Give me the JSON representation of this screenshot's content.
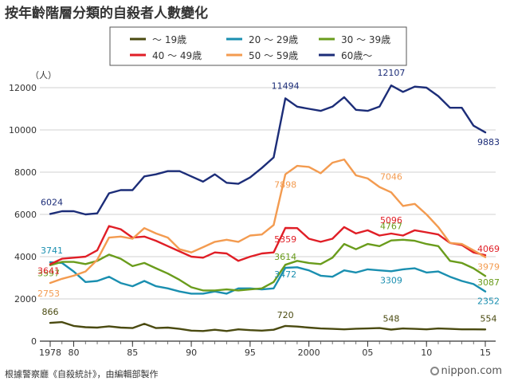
{
  "title": "按年齡階層分類的自殺者人數變化",
  "source": "根據警察廳《自殺統計》，由編輯部製作",
  "brand": "nippon.com",
  "chart_data": {
    "type": "line",
    "ylabel": "（人）",
    "ylim": [
      0,
      12000
    ],
    "xlim": [
      1978,
      2015
    ],
    "yticks": [
      0,
      2000,
      4000,
      6000,
      8000,
      10000,
      12000
    ],
    "xticks": [
      {
        "value": 1978,
        "label": "1978"
      },
      {
        "value": 1980,
        "label": "80"
      },
      {
        "value": 1985,
        "label": "85"
      },
      {
        "value": 1990,
        "label": "90"
      },
      {
        "value": 1995,
        "label": "95"
      },
      {
        "value": 2000,
        "label": "2000"
      },
      {
        "value": 2005,
        "label": "05"
      },
      {
        "value": 2010,
        "label": "10"
      },
      {
        "value": 2015,
        "label": "15"
      }
    ],
    "grid": true,
    "legend_position": "top",
    "x": [
      1978,
      1979,
      1980,
      1981,
      1982,
      1983,
      1984,
      1985,
      1986,
      1987,
      1988,
      1989,
      1990,
      1991,
      1992,
      1993,
      1994,
      1995,
      1996,
      1997,
      1998,
      1999,
      2000,
      2001,
      2002,
      2003,
      2004,
      2005,
      2006,
      2007,
      2008,
      2009,
      2010,
      2011,
      2012,
      2013,
      2014,
      2015
    ],
    "series": [
      {
        "name": "〜 19歳",
        "color": "#4a4a10",
        "values": [
          866,
          900,
          720,
          660,
          640,
          700,
          640,
          620,
          820,
          620,
          640,
          580,
          500,
          480,
          540,
          480,
          560,
          520,
          500,
          540,
          720,
          690,
          640,
          600,
          580,
          560,
          590,
          600,
          620,
          548,
          600,
          580,
          560,
          600,
          580,
          560,
          560,
          554
        ]
      },
      {
        "name": "20 〜 29歳",
        "color": "#1a8fb0",
        "values": [
          3741,
          3700,
          3300,
          2800,
          2850,
          3050,
          2750,
          2600,
          2850,
          2600,
          2500,
          2350,
          2250,
          2250,
          2350,
          2250,
          2500,
          2500,
          2450,
          2500,
          3472,
          3500,
          3350,
          3100,
          3050,
          3350,
          3250,
          3400,
          3350,
          3309,
          3400,
          3450,
          3250,
          3300,
          3050,
          2850,
          2700,
          2352
        ]
      },
      {
        "name": "30 〜 39歳",
        "color": "#6a9c1c",
        "values": [
          3597,
          3750,
          3750,
          3650,
          3800,
          4100,
          3900,
          3550,
          3700,
          3450,
          3200,
          2900,
          2550,
          2400,
          2400,
          2450,
          2400,
          2450,
          2500,
          2800,
          3614,
          3800,
          3700,
          3650,
          3950,
          4600,
          4350,
          4600,
          4500,
          4767,
          4800,
          4750,
          4600,
          4500,
          3800,
          3700,
          3450,
          3087
        ]
      },
      {
        "name": "40 〜 49歳",
        "color": "#e01e26",
        "values": [
          3641,
          3900,
          3950,
          4000,
          4300,
          5450,
          5300,
          4900,
          4950,
          4750,
          4500,
          4250,
          4000,
          3950,
          4200,
          4150,
          3800,
          4000,
          4150,
          4200,
          5359,
          5350,
          4850,
          4700,
          4850,
          5400,
          5100,
          5250,
          5000,
          5096,
          5000,
          5250,
          5150,
          5050,
          4650,
          4550,
          4200,
          4069
        ]
      },
      {
        "name": "50 〜 59歳",
        "color": "#f39b50",
        "values": [
          2753,
          2950,
          3100,
          3300,
          3850,
          4900,
          4950,
          4850,
          5350,
          5100,
          4900,
          4350,
          4200,
          4450,
          4700,
          4800,
          4700,
          5000,
          5050,
          5500,
          7898,
          8300,
          8250,
          7950,
          8450,
          8600,
          7850,
          7700,
          7300,
          7046,
          6400,
          6500,
          6000,
          5400,
          4650,
          4600,
          4300,
          3979
        ]
      },
      {
        "name": "60歳〜",
        "color": "#1c2d78",
        "values": [
          6024,
          6150,
          6150,
          6000,
          6050,
          7000,
          7150,
          7150,
          7800,
          7900,
          8050,
          8050,
          7800,
          7550,
          7900,
          7500,
          7450,
          7750,
          8200,
          8700,
          11494,
          11100,
          11000,
          10900,
          11100,
          11550,
          10950,
          10900,
          11100,
          12107,
          11800,
          12050,
          12000,
          11600,
          11050,
          11050,
          10200,
          9883
        ]
      }
    ],
    "annotations": [
      {
        "series": "〜 19歳",
        "x": 1978,
        "text": "866"
      },
      {
        "series": "〜 19歳",
        "x": 1998,
        "text": "720"
      },
      {
        "series": "〜 19歳",
        "x": 2007,
        "text": "548"
      },
      {
        "series": "〜 19歳",
        "x": 2015,
        "text": "554"
      },
      {
        "series": "20 〜 29歳",
        "x": 1978,
        "text": "3741"
      },
      {
        "series": "20 〜 29歳",
        "x": 1998,
        "text": "3472"
      },
      {
        "series": "20 〜 29歳",
        "x": 2007,
        "text": "3309"
      },
      {
        "series": "20 〜 29歳",
        "x": 2015,
        "text": "2352"
      },
      {
        "series": "30 〜 39歳",
        "x": 1978,
        "text": "3597"
      },
      {
        "series": "30 〜 39歳",
        "x": 1998,
        "text": "3614"
      },
      {
        "series": "30 〜 39歳",
        "x": 2007,
        "text": "4767"
      },
      {
        "series": "30 〜 39歳",
        "x": 2015,
        "text": "3087"
      },
      {
        "series": "40 〜 49歳",
        "x": 1978,
        "text": "3641"
      },
      {
        "series": "40 〜 49歳",
        "x": 1998,
        "text": "5359"
      },
      {
        "series": "40 〜 49歳",
        "x": 2007,
        "text": "5096"
      },
      {
        "series": "40 〜 49歳",
        "x": 2015,
        "text": "4069"
      },
      {
        "series": "50 〜 59歳",
        "x": 1978,
        "text": "2753"
      },
      {
        "series": "50 〜 59歳",
        "x": 1998,
        "text": "7898"
      },
      {
        "series": "50 〜 59歳",
        "x": 2007,
        "text": "7046"
      },
      {
        "series": "50 〜 59歳",
        "x": 2015,
        "text": "3979"
      },
      {
        "series": "60歳〜",
        "x": 1978,
        "text": "6024"
      },
      {
        "series": "60歳〜",
        "x": 1998,
        "text": "11494"
      },
      {
        "series": "60歳〜",
        "x": 2007,
        "text": "12107"
      },
      {
        "series": "60歳〜",
        "x": 2015,
        "text": "9883"
      }
    ]
  }
}
